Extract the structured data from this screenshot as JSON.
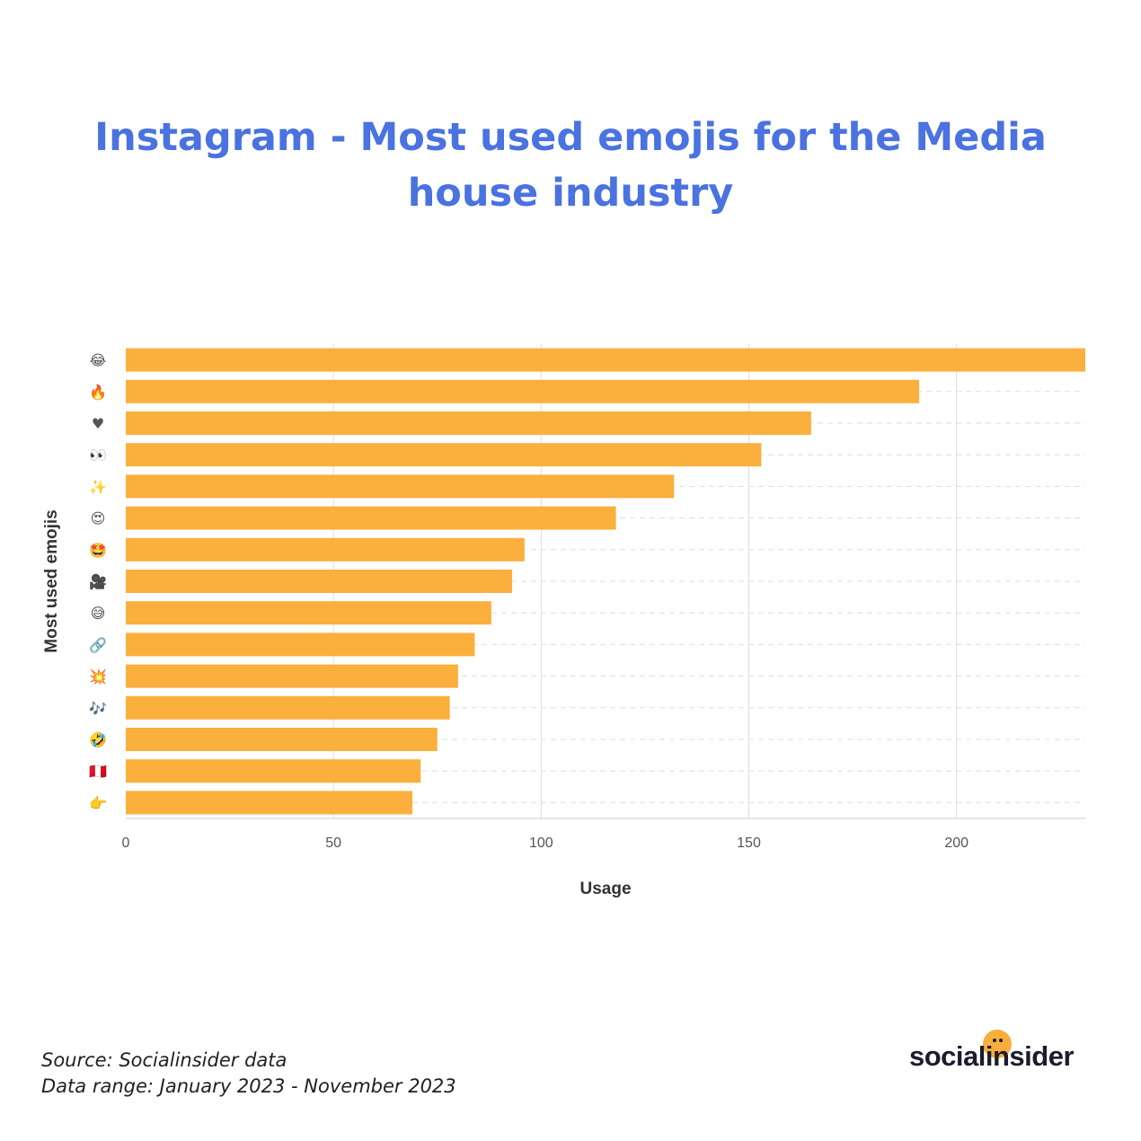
{
  "title": "Instagram - Most used emojis for the Media house industry",
  "footer": {
    "source": "Source: Socialinsider data",
    "range": "Data range: January 2023 - November 2023"
  },
  "brand": {
    "name": "socialinsider",
    "accent": "#f7ae3c"
  },
  "colors": {
    "title": "#4a72e0",
    "bar": "#fbaf3d",
    "grid": "#dddddd",
    "axis": "#cccccc",
    "tick": "#555555"
  },
  "chart_data": {
    "type": "bar",
    "orientation": "horizontal",
    "categories": [
      "😂",
      "🔥",
      "♥",
      "👀",
      "✨",
      "😍",
      "🤩",
      "🎥",
      "😅",
      "🔗",
      "💥",
      "🎶",
      "🤣",
      "🇵🇪",
      "👉"
    ],
    "values": [
      231,
      191,
      165,
      153,
      132,
      118,
      96,
      93,
      88,
      84,
      80,
      78,
      75,
      71,
      69
    ],
    "xlabel": "Usage",
    "ylabel": "Most used emojis",
    "xlim": [
      0,
      231
    ],
    "xticks": [
      0,
      50,
      100,
      150,
      200
    ],
    "grid": true,
    "legend": "none"
  }
}
